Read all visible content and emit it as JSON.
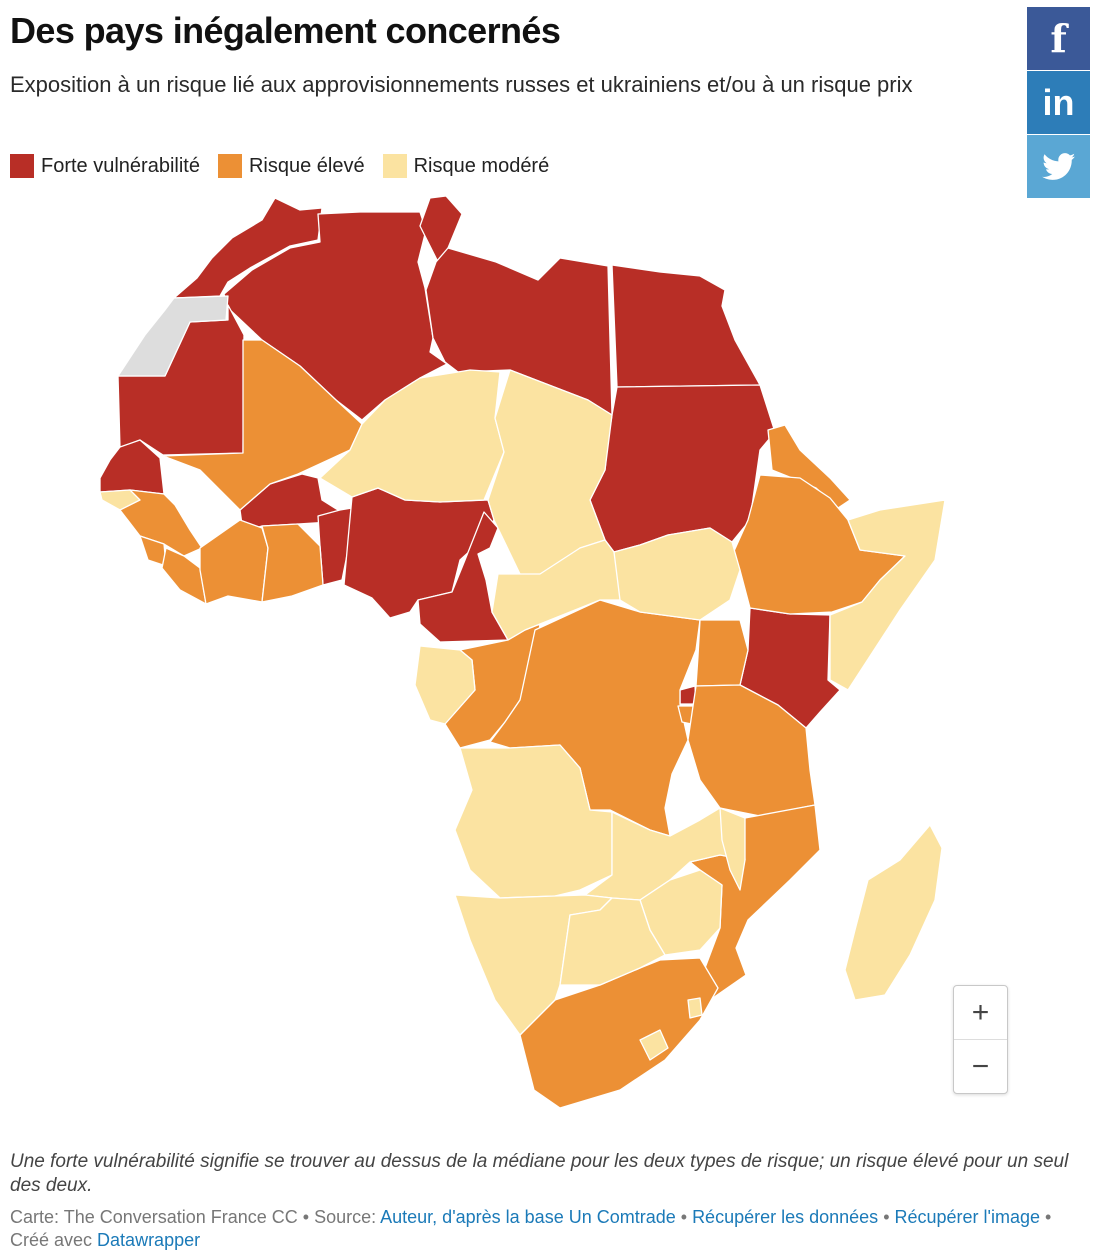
{
  "title": "Des pays inégalement concernés",
  "subtitle": "Exposition à un risque lié aux approvisionnements russes et ukrainiens et/ou à un risque prix",
  "legend": [
    {
      "label": "Forte vulnérabilité",
      "color": "#b82e26"
    },
    {
      "label": "Risque élevé",
      "color": "#ec9035"
    },
    {
      "label": "Risque modéré",
      "color": "#fbe3a1"
    }
  ],
  "colors": {
    "no_data": "#dddddd",
    "border": "#ffffff",
    "facebook": "#3b5998",
    "linkedin": "#2d7db8",
    "twitter": "#5aa7d4"
  },
  "social": {
    "facebook": {
      "icon": "facebook-icon",
      "label": "f"
    },
    "linkedin": {
      "icon": "linkedin-icon",
      "label": "in"
    },
    "twitter": {
      "icon": "twitter-icon"
    }
  },
  "zoom": {
    "in_label": "+",
    "out_label": "−"
  },
  "note": "Une forte vulnérabilité signifie se trouver au dessus de la médiane pour les deux types de risque; un risque élevé pour un seul des deux.",
  "footer": {
    "credit": "Carte: The Conversation France CC • Source: ",
    "source_link": "Auteur, d'après la base Un Comtrade",
    "sep1": " • ",
    "data_link": "Récupérer les données",
    "sep2": " • ",
    "image_link": "Récupérer l'image",
    "created": " • Créé avec ",
    "tool_link": "Datawrapper"
  },
  "map_categories": {
    "morocco": "forte",
    "algeria": "forte",
    "tunisia": "forte",
    "libya": "forte",
    "egypt": "forte",
    "mauritania": "forte",
    "senegal": "forte",
    "burkina-faso": "forte",
    "togo-benin": "forte",
    "nigeria": "forte",
    "cameroon": "forte",
    "sudan": "forte",
    "kenya": "forte",
    "rwanda": "forte",
    "mali": "eleve",
    "guinea": "eleve",
    "sierra-leone": "eleve",
    "liberia": "eleve",
    "cote-divoire": "eleve",
    "ghana": "eleve",
    "eritrea": "eleve",
    "ethiopia": "eleve",
    "congo": "eleve",
    "dr-congo": "eleve",
    "uganda": "eleve",
    "burundi": "eleve",
    "tanzania": "eleve",
    "mozambique": "eleve",
    "south-africa": "eleve",
    "niger": "modere",
    "chad": "modere",
    "central-african-republic": "modere",
    "south-sudan": "modere",
    "somalia": "modere",
    "gabon": "modere",
    "guinea-bissau": "modere",
    "angola": "modere",
    "zambia": "modere",
    "malawi": "modere",
    "zimbabwe": "modere",
    "namibia": "modere",
    "botswana": "modere",
    "madagascar": "modere",
    "lesotho": "modere",
    "eswatini": "modere",
    "western-sahara": "no_data"
  }
}
